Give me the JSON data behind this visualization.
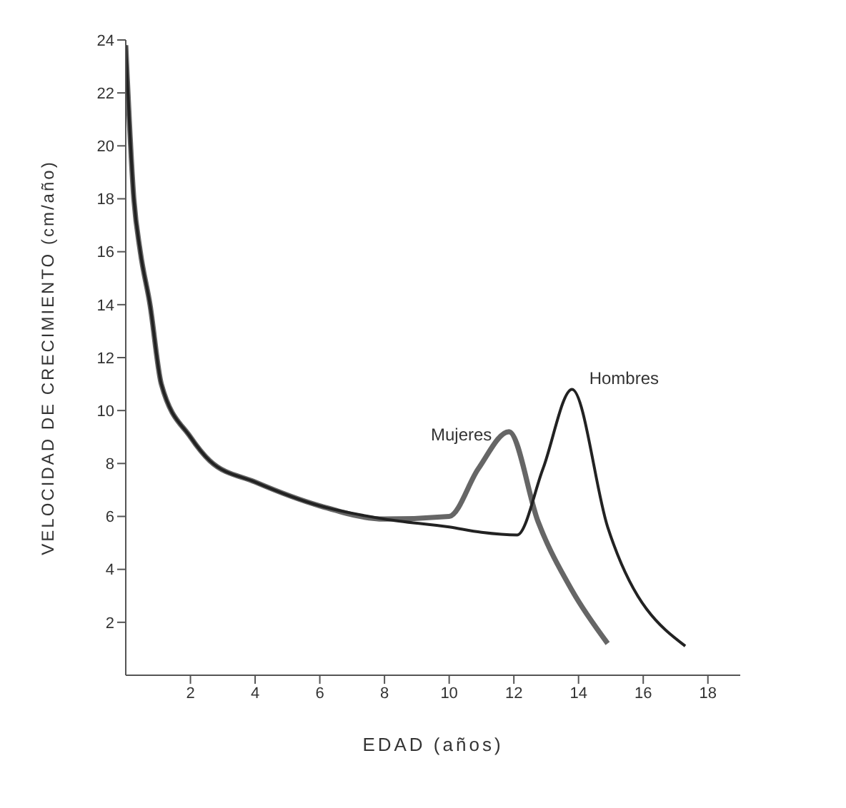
{
  "chart_data": {
    "type": "line",
    "xlabel": "EDAD (años)",
    "ylabel": "VELOCIDAD DE CRECIMIENTO (cm/año)",
    "xlim": [
      0,
      19
    ],
    "ylim": [
      0,
      24
    ],
    "xticks": [
      2,
      4,
      6,
      8,
      10,
      12,
      14,
      16,
      18
    ],
    "yticks": [
      2,
      4,
      6,
      8,
      10,
      12,
      14,
      16,
      18,
      20,
      22,
      24
    ],
    "grid": false,
    "legend": false,
    "marker": "none",
    "line_style": "solid",
    "series": [
      {
        "name": "Mujeres",
        "color": "#666666",
        "x": [
          0,
          0.25,
          0.45,
          0.75,
          1.1,
          2,
          2.6,
          4,
          6,
          8,
          10,
          10.9,
          11.85,
          12.75,
          13.8,
          14.9
        ],
        "values": [
          23.8,
          18,
          16,
          14,
          11,
          9,
          8.1,
          7.3,
          6.4,
          5.9,
          6,
          7.8,
          9.2,
          5.8,
          3.2,
          1.2
        ]
      },
      {
        "name": "Hombres",
        "color": "#222222",
        "x": [
          0,
          0.25,
          0.45,
          0.75,
          1.1,
          2,
          2.6,
          4,
          6,
          8,
          10,
          11,
          12.1,
          12.9,
          13.8,
          14.9,
          17.3
        ],
        "values": [
          23.8,
          18,
          16,
          14,
          11,
          9,
          8.1,
          7.3,
          6.4,
          5.9,
          5.6,
          5.4,
          5.3,
          7.8,
          10.8,
          5.6,
          1.1
        ]
      }
    ]
  }
}
